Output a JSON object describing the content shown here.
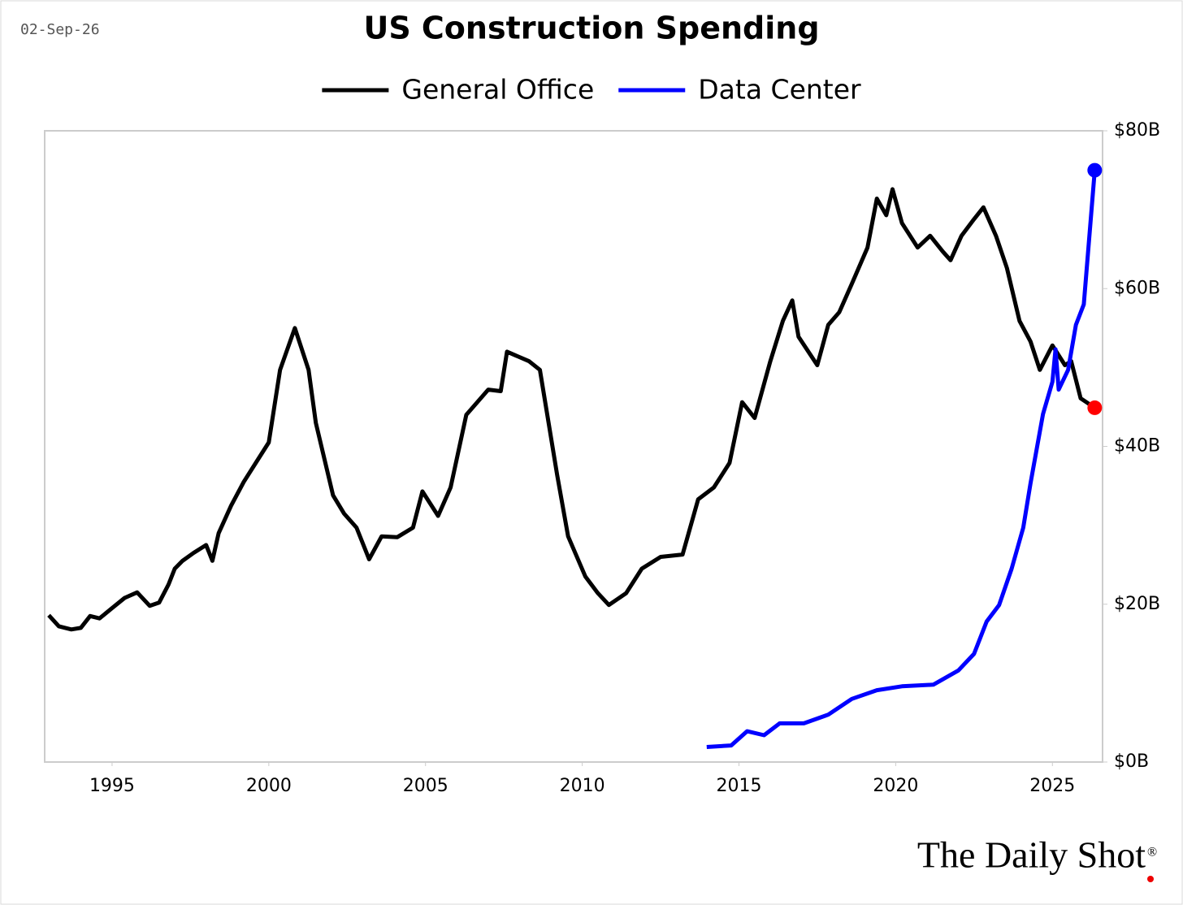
{
  "date_stamp": "02-Sep-26",
  "brand": "The Daily Shot",
  "brand_mark": "®",
  "chart_data": {
    "type": "line",
    "title": "US Construction Spending",
    "xlim": [
      1992.85,
      2026.6
    ],
    "xticks": [
      1995,
      2000,
      2005,
      2010,
      2015,
      2020,
      2025
    ],
    "ylim": [
      0,
      80
    ],
    "yticks": [
      {
        "value": 0,
        "label": "$0B"
      },
      {
        "value": 20,
        "label": "$20B"
      },
      {
        "value": 40,
        "label": "$40B"
      },
      {
        "value": 60,
        "label": "$60B"
      },
      {
        "value": 80,
        "label": "$80B"
      }
    ],
    "grid": false,
    "legend": "top",
    "series": [
      {
        "name": "General Office",
        "color": "#000000",
        "marker_color": "#ff0000",
        "x": [
          1992.98,
          1993.3,
          1993.7,
          1994.0,
          1994.3,
          1994.6,
          1995.0,
          1995.4,
          1995.8,
          1996.2,
          1996.5,
          1996.8,
          1997.0,
          1997.25,
          1997.6,
          1998.0,
          1998.2,
          1998.4,
          1998.8,
          1999.2,
          1999.6,
          2000.0,
          2000.36,
          2000.83,
          2001.27,
          2001.5,
          2002.05,
          2002.4,
          2002.8,
          2003.2,
          2003.6,
          2004.1,
          2004.6,
          2004.9,
          2005.4,
          2005.8,
          2006.3,
          2007.0,
          2007.4,
          2007.6,
          2008.3,
          2008.65,
          2009.2,
          2009.55,
          2010.1,
          2010.5,
          2010.85,
          2011.4,
          2011.9,
          2012.5,
          2013.2,
          2013.7,
          2014.2,
          2014.7,
          2015.1,
          2015.5,
          2016.0,
          2016.4,
          2016.7,
          2016.9,
          2017.5,
          2017.85,
          2018.2,
          2018.6,
          2019.1,
          2019.4,
          2019.7,
          2019.9,
          2020.2,
          2020.7,
          2021.1,
          2021.5,
          2021.75,
          2022.1,
          2022.5,
          2022.8,
          2023.2,
          2023.55,
          2023.95,
          2024.3,
          2024.6,
          2025.0,
          2025.4,
          2025.6,
          2025.9,
          2026.35
        ],
        "values": [
          18.6,
          17.2,
          16.8,
          17.0,
          18.5,
          18.2,
          19.5,
          20.8,
          21.5,
          19.8,
          20.2,
          22.5,
          24.5,
          25.5,
          26.5,
          27.5,
          25.5,
          29.0,
          32.5,
          35.5,
          38.0,
          40.5,
          49.7,
          55.0,
          49.7,
          43.0,
          33.8,
          31.5,
          29.7,
          25.7,
          28.6,
          28.5,
          29.7,
          34.3,
          31.2,
          34.8,
          44.0,
          47.2,
          47.0,
          52.0,
          50.8,
          49.7,
          36.4,
          28.6,
          23.5,
          21.4,
          19.9,
          21.4,
          24.5,
          26.0,
          26.3,
          33.3,
          34.8,
          37.9,
          45.6,
          43.6,
          50.8,
          55.9,
          58.5,
          53.9,
          50.3,
          55.4,
          57.0,
          60.6,
          65.2,
          71.4,
          69.3,
          72.6,
          68.3,
          65.2,
          66.7,
          64.7,
          63.6,
          66.7,
          68.8,
          70.3,
          66.7,
          62.6,
          55.9,
          53.3,
          49.7,
          52.8,
          50.3,
          50.8,
          46.1,
          44.9
        ]
      },
      {
        "name": "Data Center",
        "color": "#0000ff",
        "marker_color": "#0000ff",
        "x": [
          2013.97,
          2014.75,
          2015.26,
          2015.8,
          2016.3,
          2017.07,
          2017.85,
          2018.6,
          2019.4,
          2020.2,
          2021.2,
          2022.0,
          2022.5,
          2022.9,
          2023.3,
          2023.7,
          2024.07,
          2024.3,
          2024.7,
          2025.0,
          2025.1,
          2025.2,
          2025.5,
          2025.75,
          2026.0,
          2026.35
        ],
        "values": [
          1.9,
          2.1,
          3.9,
          3.4,
          4.9,
          4.9,
          6.0,
          8.0,
          9.1,
          9.6,
          9.8,
          11.6,
          13.7,
          17.8,
          19.9,
          24.5,
          29.7,
          35.3,
          44.1,
          48.2,
          52.3,
          47.2,
          49.7,
          55.4,
          58.0,
          75.0
        ]
      }
    ]
  }
}
